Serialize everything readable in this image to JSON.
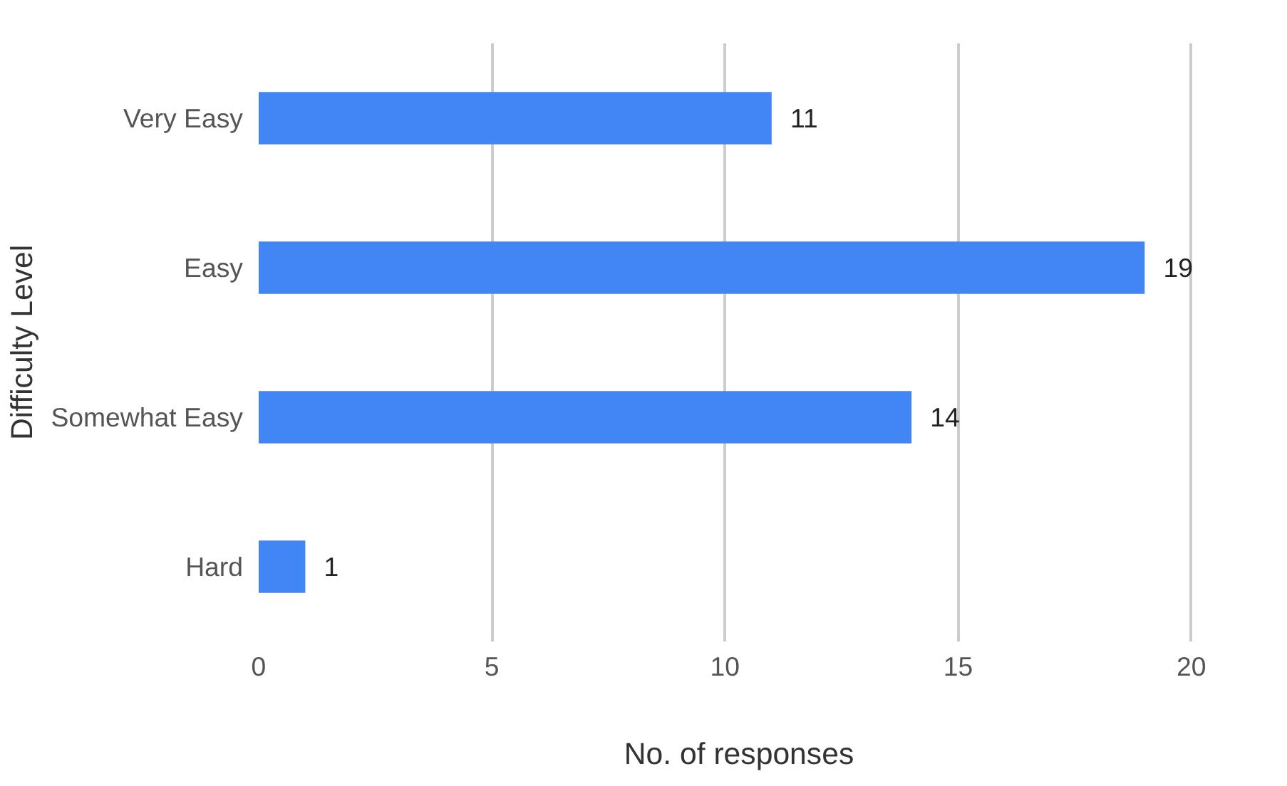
{
  "chart_data": {
    "type": "bar",
    "orientation": "horizontal",
    "xlabel": "No. of responses",
    "ylabel": "Difficulty Level",
    "categories": [
      "Very Easy",
      "Easy",
      "Somewhat Easy",
      "Hard"
    ],
    "values": [
      11,
      19,
      14,
      1
    ],
    "color": "#4285f4",
    "xlim": [
      0,
      20
    ],
    "xticks": [
      0,
      5,
      10,
      15,
      20
    ],
    "grid": "x",
    "data_labels": true
  }
}
